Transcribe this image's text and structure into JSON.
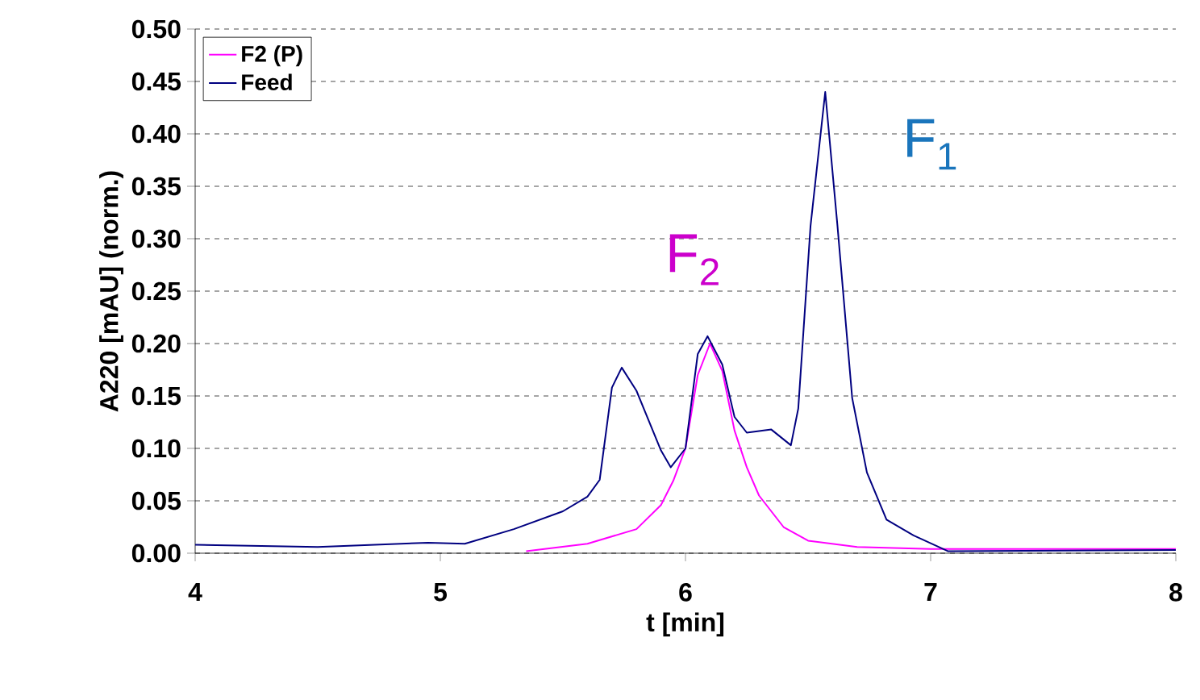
{
  "chart_data": {
    "type": "line",
    "xlabel": "t [min]",
    "ylabel": "A220 [mAU] (norm.)",
    "xlim": [
      4,
      8
    ],
    "xticks": [
      4,
      5,
      6,
      7,
      8
    ],
    "ylim": [
      0,
      0.5
    ],
    "yticks": [
      {
        "value": 0,
        "label": "0.00"
      },
      {
        "value": 0.05,
        "label": "0.05"
      },
      {
        "value": 0.1,
        "label": "0.10"
      },
      {
        "value": 0.15,
        "label": "0.15"
      },
      {
        "value": 0.2,
        "label": "0.20"
      },
      {
        "value": 0.25,
        "label": "0.25"
      },
      {
        "value": 0.3,
        "label": "0.30"
      },
      {
        "value": 0.35,
        "label": "0.35"
      },
      {
        "value": 0.4,
        "label": "0.40"
      },
      {
        "value": 0.45,
        "label": "0.45"
      },
      {
        "value": 0.5,
        "label": "0.50"
      }
    ],
    "grid": "y",
    "legend": "top left",
    "marker": "none",
    "line_style": "solid",
    "series": [
      {
        "name": "F2 (P)",
        "color": "#ff00ff",
        "x": [
          5.35,
          5.6,
          5.8,
          5.9,
          5.95,
          6.0,
          6.05,
          6.1,
          6.15,
          6.2,
          6.25,
          6.3,
          6.4,
          6.5,
          6.7,
          7.0,
          8.0
        ],
        "values": [
          0.002,
          0.009,
          0.023,
          0.046,
          0.069,
          0.1,
          0.17,
          0.2,
          0.174,
          0.117,
          0.082,
          0.055,
          0.025,
          0.012,
          0.006,
          0.004,
          0.004
        ]
      },
      {
        "name": "Feed",
        "color": "#000080",
        "x": [
          4.0,
          4.5,
          4.95,
          5.1,
          5.3,
          5.5,
          5.6,
          5.65,
          5.7,
          5.74,
          5.8,
          5.9,
          5.94,
          6.0,
          6.05,
          6.09,
          6.15,
          6.2,
          6.25,
          6.35,
          6.43,
          6.46,
          6.51,
          6.57,
          6.62,
          6.68,
          6.74,
          6.82,
          6.93,
          7.07,
          8.0
        ],
        "values": [
          0.008,
          0.006,
          0.01,
          0.009,
          0.023,
          0.04,
          0.054,
          0.07,
          0.158,
          0.177,
          0.155,
          0.098,
          0.082,
          0.1,
          0.19,
          0.207,
          0.18,
          0.13,
          0.115,
          0.118,
          0.103,
          0.138,
          0.312,
          0.44,
          0.312,
          0.148,
          0.077,
          0.032,
          0.017,
          0.002,
          0.003
        ]
      }
    ],
    "annotations": [
      "F$_{2}$",
      "F$_{1}$"
    ]
  }
}
